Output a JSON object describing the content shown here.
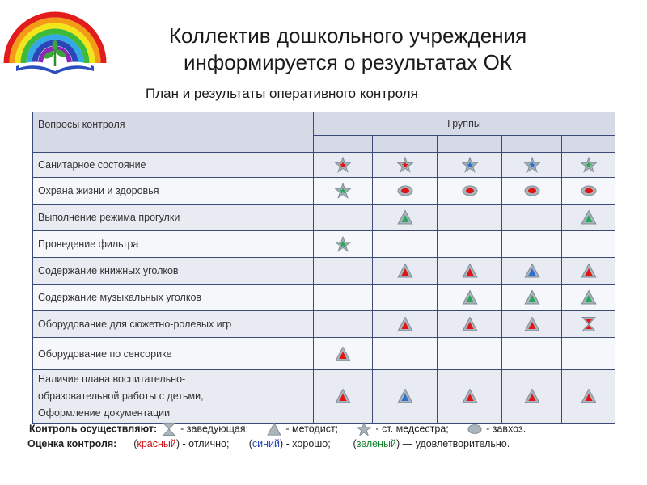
{
  "header": {
    "title_line1": "Коллектив дошкольного учреждения",
    "title_line2": "информируется о результатах ОК",
    "subtitle": "План и результаты оперативного контроля"
  },
  "table": {
    "col_questions": "Вопросы контроля",
    "col_groups": "Группы",
    "rows": [
      {
        "label": "Санитарное состояние",
        "marks": [
          {
            "shape": "star",
            "color": "red"
          },
          {
            "shape": "star",
            "color": "red"
          },
          {
            "shape": "star",
            "color": "blue"
          },
          {
            "shape": "star",
            "color": "blue"
          },
          {
            "shape": "star",
            "color": "green"
          }
        ]
      },
      {
        "label": "Охрана жизни  и  здоровья",
        "marks": [
          {
            "shape": "star",
            "color": "green"
          },
          {
            "shape": "circle",
            "color": "red"
          },
          {
            "shape": "circle",
            "color": "red"
          },
          {
            "shape": "circle",
            "color": "red"
          },
          {
            "shape": "circle",
            "color": "red"
          }
        ]
      },
      {
        "label": "Выполнение режима прогулки",
        "marks": [
          null,
          {
            "shape": "triangle",
            "color": "green"
          },
          null,
          null,
          {
            "shape": "triangle",
            "color": "green"
          }
        ]
      },
      {
        "label": "Проведение   фильтра",
        "marks": [
          {
            "shape": "star",
            "color": "green"
          },
          null,
          null,
          null,
          null
        ]
      },
      {
        "label": "Содержание книжных уголков",
        "marks": [
          null,
          {
            "shape": "triangle",
            "color": "red"
          },
          {
            "shape": "triangle",
            "color": "red"
          },
          {
            "shape": "triangle",
            "color": "blue"
          },
          {
            "shape": "triangle",
            "color": "red"
          }
        ]
      },
      {
        "label": "Содержание музыкальных уголков",
        "marks": [
          null,
          null,
          {
            "shape": "triangle",
            "color": "green"
          },
          {
            "shape": "triangle",
            "color": "green"
          },
          {
            "shape": "triangle",
            "color": "green"
          }
        ]
      },
      {
        "label": "Оборудование для сюжетно-ролевых игр",
        "marks": [
          null,
          {
            "shape": "triangle",
            "color": "red"
          },
          {
            "shape": "triangle",
            "color": "red"
          },
          {
            "shape": "triangle",
            "color": "red"
          },
          {
            "shape": "hourglass",
            "color": "red"
          }
        ]
      },
      {
        "label": "Оборудование по сенсорике",
        "marks": [
          {
            "shape": "triangle",
            "color": "red"
          },
          null,
          null,
          null,
          null
        ]
      }
    ],
    "last_row": {
      "line1": "Наличие плана воспитательно-",
      "line2": "образовательной  работы с детьми,",
      "line3": "Оформление  документации",
      "marks": [
        {
          "shape": "triangle",
          "color": "red"
        },
        {
          "shape": "triangle",
          "color": "blue"
        },
        {
          "shape": "triangle",
          "color": "red"
        },
        {
          "shape": "triangle",
          "color": "red"
        },
        {
          "shape": "triangle",
          "color": "red"
        }
      ]
    }
  },
  "legend": {
    "control_label": "Контроль осуществляют:",
    "manager": "- заведующая;",
    "methodist": "- методист;",
    "nurse": "- ст. медсестра;",
    "supply": "- завхоз.",
    "rating_label": "Оценка контроля:",
    "red_word": "красный",
    "red_desc": "- отлично;",
    "blue_word": "синий",
    "blue_desc": "- хорошо;",
    "green_word": "зеленый",
    "green_desc": "— удовлетворительно.",
    "paren_open": "(",
    "paren_close": ")"
  },
  "colors": {
    "red": "#e01515",
    "blue": "#2f6fd1",
    "green": "#2aa85a",
    "frame": "#7f8c96",
    "table_border": "#3d4a78"
  }
}
